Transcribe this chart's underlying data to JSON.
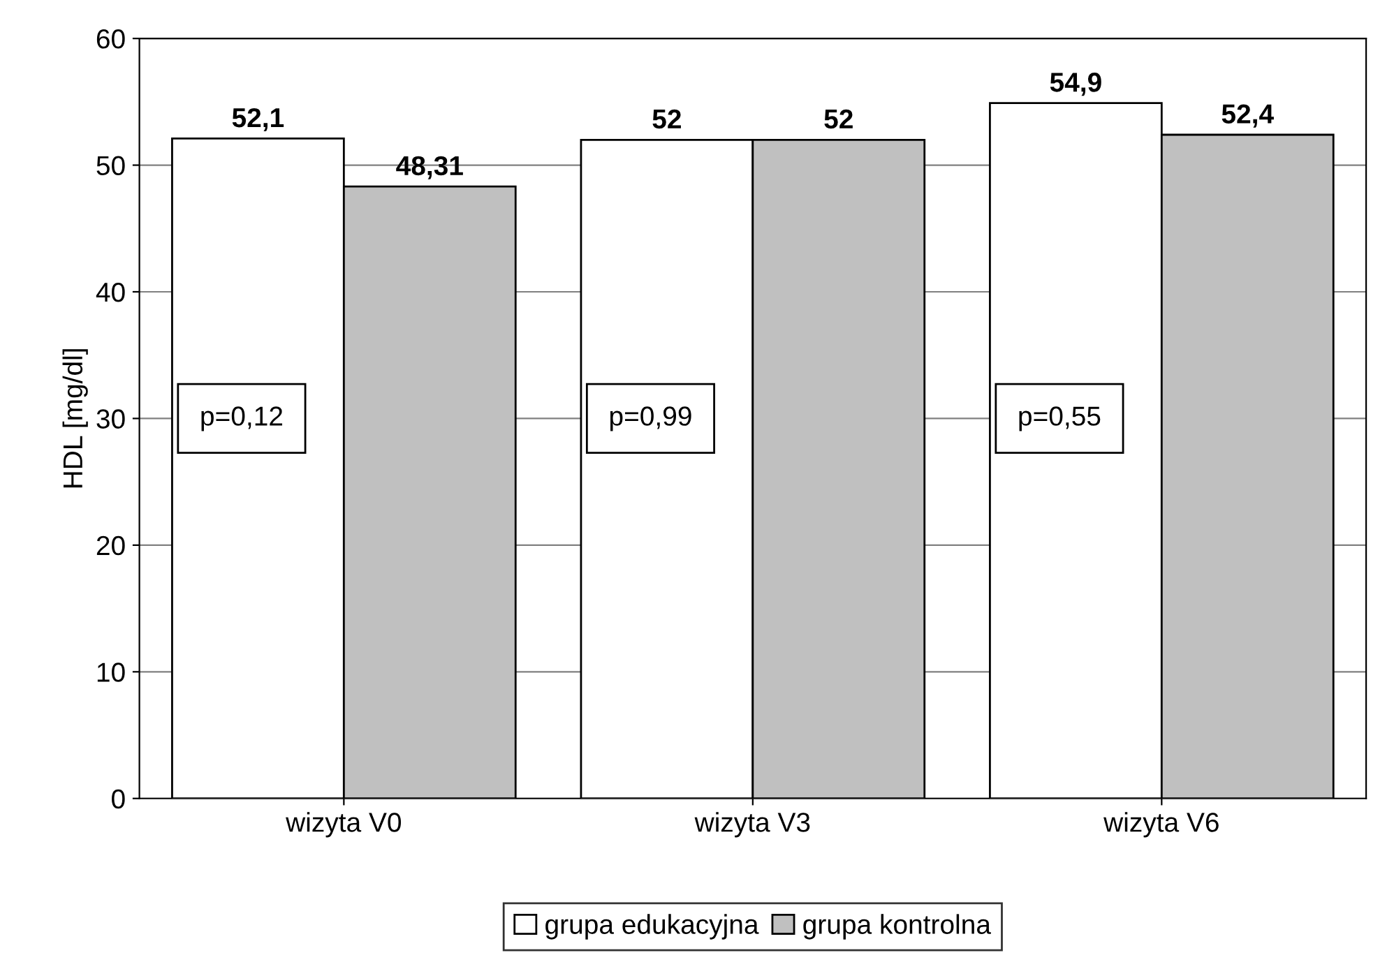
{
  "chart_data": {
    "type": "bar",
    "ylabel": "HDL [mg/dl]",
    "categories": [
      "wizyta V0",
      "wizyta V3",
      "wizyta V6"
    ],
    "series": [
      {
        "name": "grupa edukacyjna",
        "color": "#ffffff",
        "values": [
          52.1,
          52,
          54.9
        ],
        "value_labels": [
          "52,1",
          "52",
          "54,9"
        ]
      },
      {
        "name": "grupa kontrolna",
        "color": "#c0c0c0",
        "values": [
          48.31,
          52,
          52.4
        ],
        "value_labels": [
          "48,31",
          "52",
          "52,4"
        ]
      }
    ],
    "annotations": [
      "p=0,12",
      "p=0,99",
      "p=0,55"
    ],
    "ylim": [
      0,
      60
    ],
    "yticks": [
      0,
      10,
      20,
      30,
      40,
      50,
      60
    ],
    "grid": "y",
    "legend": "bottom"
  }
}
